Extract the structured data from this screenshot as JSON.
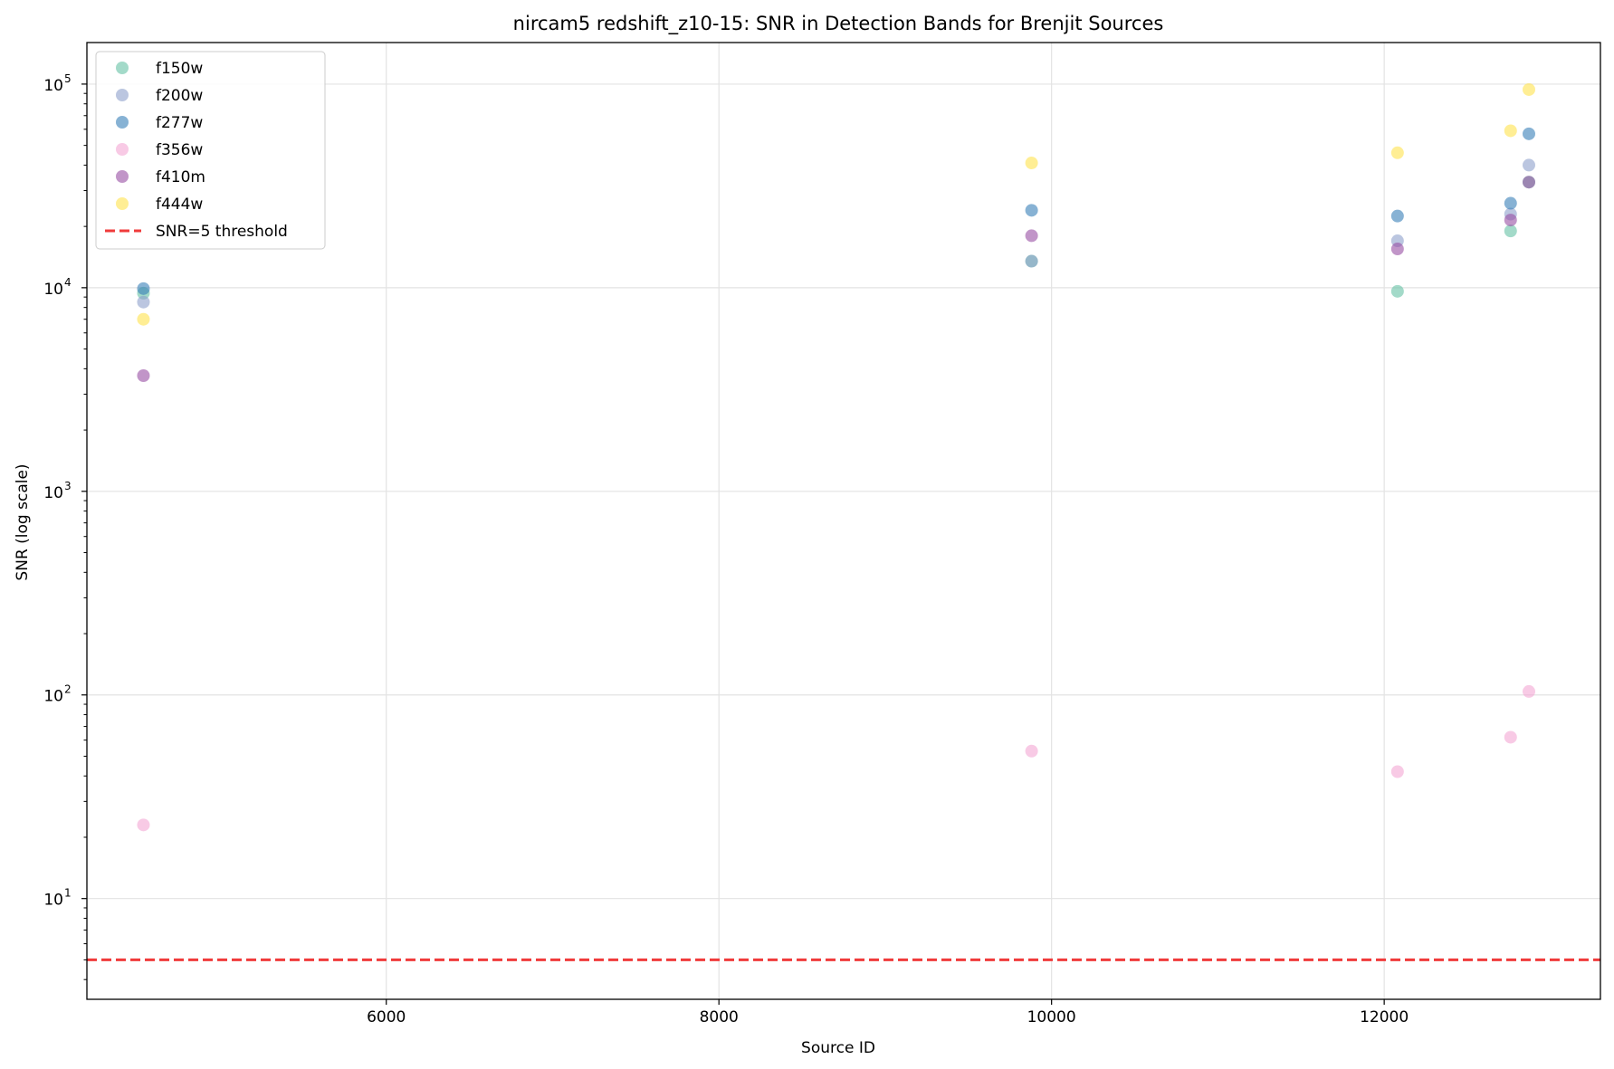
{
  "chart_data": {
    "type": "scatter",
    "title": "nircam5 redshift_z10-15: SNR in Detection Bands for Brenjit Sources",
    "xlabel": "Source ID",
    "ylabel": "SNR (log scale)",
    "yscale": "log",
    "xlim": [
      4200,
      13300
    ],
    "ylim": [
      3.2,
      160000
    ],
    "xticks": [
      {
        "value": 6000,
        "label": "6000"
      },
      {
        "value": 8000,
        "label": "8000"
      },
      {
        "value": 10000,
        "label": "10000"
      },
      {
        "value": 12000,
        "label": "12000"
      }
    ],
    "yticks": [
      {
        "value": 10,
        "base": "10",
        "exp": "1"
      },
      {
        "value": 100,
        "base": "10",
        "exp": "2"
      },
      {
        "value": 1000,
        "base": "10",
        "exp": "3"
      },
      {
        "value": 10000,
        "base": "10",
        "exp": "4"
      },
      {
        "value": 100000,
        "base": "10",
        "exp": "5"
      }
    ],
    "grid": true,
    "legend_position": "top-left",
    "series": [
      {
        "name": "f150w",
        "color": "#66c2a5",
        "points": [
          [
            4540,
            9400
          ],
          [
            9880,
            13500
          ],
          [
            12080,
            9600
          ],
          [
            12760,
            19000
          ],
          [
            12870,
            33000
          ]
        ]
      },
      {
        "name": "f200w",
        "color": "#8da0cb",
        "points": [
          [
            4540,
            8500
          ],
          [
            9880,
            13500
          ],
          [
            12080,
            17000
          ],
          [
            12760,
            23000
          ],
          [
            12870,
            40000
          ]
        ]
      },
      {
        "name": "f277w",
        "color": "#377eb8",
        "points": [
          [
            4540,
            9900
          ],
          [
            9880,
            24000
          ],
          [
            12080,
            22500
          ],
          [
            12760,
            26000
          ],
          [
            12870,
            57000
          ]
        ]
      },
      {
        "name": "f356w",
        "color": "#f4a7d3",
        "points": [
          [
            4540,
            23
          ],
          [
            9880,
            53
          ],
          [
            12080,
            42
          ],
          [
            12760,
            62
          ],
          [
            12870,
            104
          ]
        ]
      },
      {
        "name": "f410m",
        "color": "#984ea3",
        "points": [
          [
            4540,
            3700
          ],
          [
            9880,
            18000
          ],
          [
            12080,
            15500
          ],
          [
            12760,
            21500
          ],
          [
            12870,
            33000
          ]
        ]
      },
      {
        "name": "f444w",
        "color": "#ffe34d",
        "points": [
          [
            4540,
            7000
          ],
          [
            9880,
            41000
          ],
          [
            12080,
            46000
          ],
          [
            12760,
            59000
          ],
          [
            12870,
            94000
          ]
        ]
      }
    ],
    "threshold": {
      "name": "SNR=5 threshold",
      "value": 5,
      "color": "#f03b3b"
    }
  }
}
